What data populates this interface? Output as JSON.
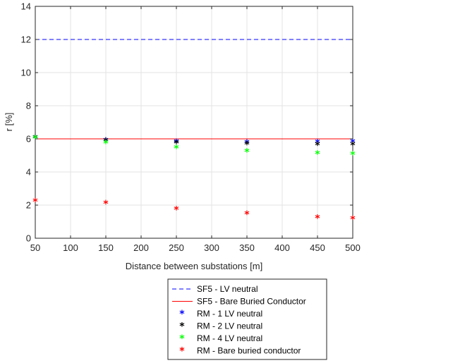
{
  "chart_data": {
    "type": "scatter",
    "xlabel": "Distance between substations [m]",
    "ylabel": "r [%]",
    "xlim": [
      50,
      500
    ],
    "ylim": [
      0,
      14
    ],
    "xticks": [
      50,
      100,
      150,
      200,
      250,
      300,
      350,
      400,
      450,
      500
    ],
    "yticks": [
      0,
      2,
      4,
      6,
      8,
      10,
      12,
      14
    ],
    "grid": true,
    "legend_position": "bottom-outside",
    "series": [
      {
        "name": "SF5 - LV neutral",
        "kind": "line",
        "style": "dashed",
        "color": "#0000ff",
        "x": [
          50,
          500
        ],
        "y": [
          12,
          12
        ]
      },
      {
        "name": "SF5 - Bare Buried Conductor",
        "kind": "line",
        "style": "solid",
        "color": "#ff0000",
        "x": [
          50,
          500
        ],
        "y": [
          6,
          6
        ]
      },
      {
        "name": "RM - 1 LV neutral",
        "kind": "marker",
        "color": "#0000ff",
        "x": [
          50,
          150,
          250,
          350,
          450,
          500
        ],
        "y": [
          6.05,
          5.88,
          5.78,
          5.74,
          5.76,
          5.78
        ]
      },
      {
        "name": "RM - 2 LV neutral",
        "kind": "marker",
        "color": "#000000",
        "x": [
          50,
          150,
          250,
          350,
          450,
          500
        ],
        "y": [
          6.04,
          5.85,
          5.72,
          5.65,
          5.62,
          5.62
        ]
      },
      {
        "name": "RM - 4 LV neutral",
        "kind": "marker",
        "color": "#00ff00",
        "x": [
          50,
          150,
          250,
          350,
          450,
          500
        ],
        "y": [
          6.02,
          5.72,
          5.42,
          5.22,
          5.08,
          5.04
        ]
      },
      {
        "name": "RM - Bare buried conductor",
        "kind": "marker",
        "color": "#ff0000",
        "x": [
          50,
          150,
          250,
          350,
          450,
          500
        ],
        "y": [
          2.22,
          2.08,
          1.72,
          1.45,
          1.22,
          1.15
        ]
      }
    ]
  }
}
